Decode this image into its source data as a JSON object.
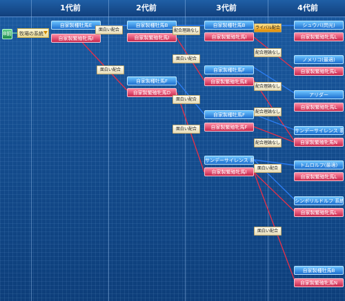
{
  "header": {
    "gen1": "1代前",
    "gen2": "2代前",
    "gen3": "3代前",
    "gen4": "4代前"
  },
  "root": {
    "button_label": "B前",
    "select_value": "牧場の系統"
  },
  "gen1": {
    "sire": "自家製種牡馬E",
    "dam": "自家製繁殖牝馬I"
  },
  "gen2": {
    "sire_a": "自家製種牡馬B",
    "dam_a": "自家製繁殖牝馬I",
    "sire_b": "自家製種牡馬F",
    "dam_b": "自家製繁殖牝馬D"
  },
  "gen3": {
    "sire_a": "自家製種牡馬B",
    "dam_a": "自家製繁殖牝馬I",
    "sire_b": "自家製種牡馬F",
    "dam_b": "自家製繁殖牝馬E",
    "sire_c": "自家製種牡馬F",
    "dam_c": "自家製繁殖牝馬F",
    "sire_d": "サンデーサイレンス 系統",
    "dam_d": "自家製繁殖牝馬I"
  },
  "gen4": {
    "s1": "シュウバ(閃光)",
    "d1": "自家製繁殖牝馬L",
    "s2": "ノメリコ(最適)",
    "d2": "自家製繁殖牝馬L",
    "s3": "アリダー",
    "d3": "自家製繁殖牝馬L",
    "s4": "サンデーサイレンス 系統",
    "d4": "自家製繁殖牝馬N",
    "s5": "トムロルフ(最適)",
    "d5": "自家製繁殖牝馬L",
    "s6": "シンボリルドルフ 系統",
    "d6": "自家製繁殖牝馬L",
    "s7": "自家製種牡馬B",
    "d7": "自家製繁殖牝馬N"
  },
  "badges": {
    "g1_a": "面白い配合",
    "g1_b": "面白い配合",
    "g2_a": "配合理論なし",
    "g2_b": "面白い配合",
    "g2_c": "面白い配合",
    "g2_d": "面白い配合",
    "g3_a": "ライバル配合",
    "g3_b": "配合理論なし",
    "g3_c": "配合理論なし",
    "g3_d": "配合理論なし",
    "g3_e": "配合理論なし",
    "g3_f": "面白い配合",
    "g3_g": "面白い配合"
  },
  "colors": {
    "sire": "#1d6fd0",
    "dam": "#c7264c",
    "sire_line": "#2b7cf0",
    "dam_line": "#e0304a"
  }
}
